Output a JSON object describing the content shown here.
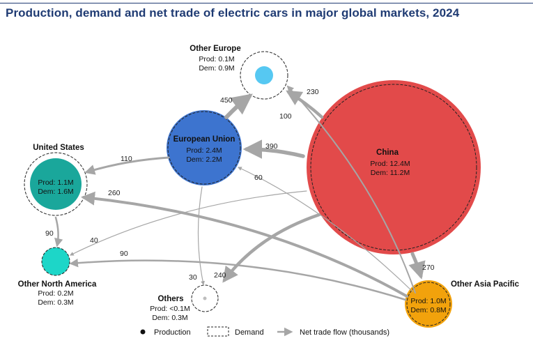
{
  "title": "Production, demand and net trade of electric cars in major global markets, 2024",
  "colors": {
    "china": "#e24a4a",
    "eu": "#3d74cf",
    "us": "#1aa79b",
    "other_north_america": "#1dd6c8",
    "other_europe": "#56c8f2",
    "other_asia_pacific": "#f2a20c",
    "others": "#bdbdbd",
    "flow": "#a6a6a6"
  },
  "markets": {
    "china": {
      "name": "China",
      "prod": "Prod: 12.4M",
      "dem": "Dem: 11.2M"
    },
    "eu": {
      "name": "European Union",
      "prod": "Prod: 2.4M",
      "dem": "Dem: 2.2M"
    },
    "us": {
      "name": "United States",
      "prod": "Prod: 1.1M",
      "dem": "Dem: 1.6M"
    },
    "other_europe": {
      "name": "Other Europe",
      "prod": "Prod: 0.1M",
      "dem": "Dem: 0.9M"
    },
    "other_north_america": {
      "name": "Other North America",
      "prod": "Prod: 0.2M",
      "dem": "Dem: 0.3M"
    },
    "others": {
      "name": "Others",
      "prod": "Prod: <0.1M",
      "dem": "Dem: 0.3M"
    },
    "other_asia_pacific": {
      "name": "Other Asia Pacific",
      "prod": "Prod: 1.0M",
      "dem": "Dem: 0.8M"
    }
  },
  "flows": {
    "china_to_other_europe": "230",
    "apac_to_other_europe": "100",
    "eu_to_other_europe": "450",
    "china_to_eu": "390",
    "china_to_us": "110",
    "apac_to_eu": "60",
    "apac_to_us": "260",
    "us_to_other_north_america": "90",
    "china_to_other_north_america": "40",
    "apac_to_other_north_america": "90",
    "eu_to_others": "30",
    "china_to_others": "240",
    "china_to_apac": "270"
  },
  "legend": {
    "production": "Production",
    "demand": "Demand",
    "flow": "Net trade flow (thousands)"
  }
}
